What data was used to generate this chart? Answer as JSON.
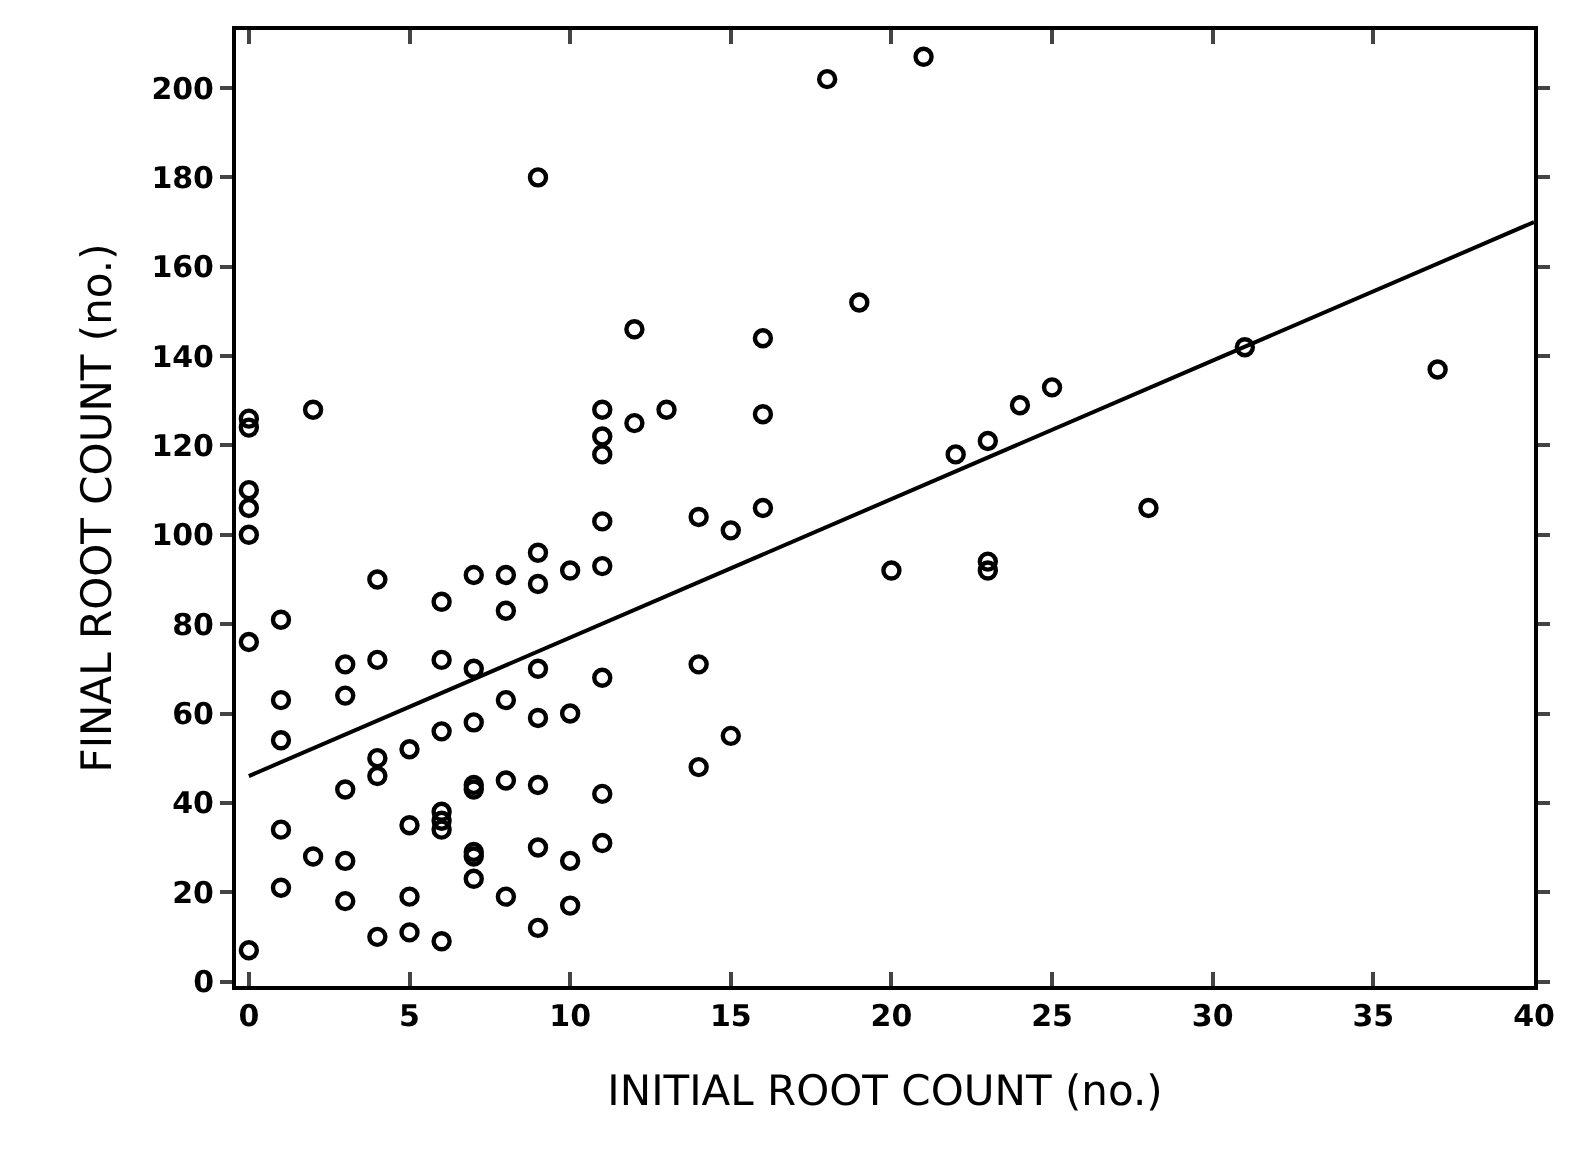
{
  "chart_data": {
    "type": "scatter",
    "xlabel": "INITIAL ROOT COUNT (no.)",
    "ylabel": "FINAL ROOT COUNT (no.)",
    "xlim": [
      -0.4,
      40
    ],
    "ylim": [
      -1,
      213
    ],
    "xticks": [
      0,
      5,
      10,
      15,
      20,
      25,
      30,
      35,
      40
    ],
    "yticks": [
      0,
      20,
      40,
      60,
      80,
      100,
      120,
      140,
      160,
      180,
      200
    ],
    "grid": false,
    "legend": false,
    "marker": "circle",
    "series": [
      {
        "color": "#000000",
        "x": [
          0,
          0,
          0,
          0,
          0,
          0,
          0,
          1,
          1,
          1,
          1,
          1,
          2,
          2,
          3,
          3,
          3,
          3,
          3,
          4,
          4,
          4,
          4,
          4,
          5,
          5,
          5,
          5,
          6,
          6,
          6,
          6,
          6,
          6,
          6,
          7,
          7,
          7,
          7,
          7,
          7,
          7,
          7,
          8,
          8,
          8,
          8,
          8,
          9,
          9,
          9,
          9,
          9,
          9,
          9,
          9,
          10,
          10,
          10,
          10,
          11,
          11,
          11,
          11,
          11,
          11,
          11,
          11,
          12,
          12,
          13,
          14,
          14,
          14,
          15,
          15,
          16,
          16,
          16,
          18,
          19,
          20,
          21,
          22,
          23,
          23,
          23,
          24,
          25,
          28,
          31,
          37
        ],
        "values": [
          7,
          76,
          100,
          106,
          110,
          124,
          126,
          21,
          34,
          54,
          63,
          81,
          28,
          128,
          18,
          27,
          43,
          64,
          71,
          10,
          46,
          50,
          72,
          90,
          11,
          19,
          35,
          52,
          9,
          34,
          36,
          38,
          56,
          72,
          85,
          23,
          28,
          29,
          43,
          44,
          58,
          70,
          91,
          19,
          45,
          63,
          83,
          91,
          12,
          30,
          44,
          59,
          70,
          89,
          96,
          180,
          17,
          27,
          60,
          92,
          31,
          42,
          68,
          93,
          103,
          118,
          122,
          128,
          125,
          146,
          128,
          48,
          71,
          104,
          55,
          101,
          106,
          127,
          144,
          202,
          152,
          92,
          207,
          118,
          92,
          94,
          121,
          129,
          133,
          106,
          142,
          137
        ]
      },
      {
        "type": "line",
        "color": "#000000",
        "line_style": "solid",
        "marker": "none",
        "x": [
          0,
          40
        ],
        "values": [
          46,
          170
        ]
      }
    ]
  }
}
